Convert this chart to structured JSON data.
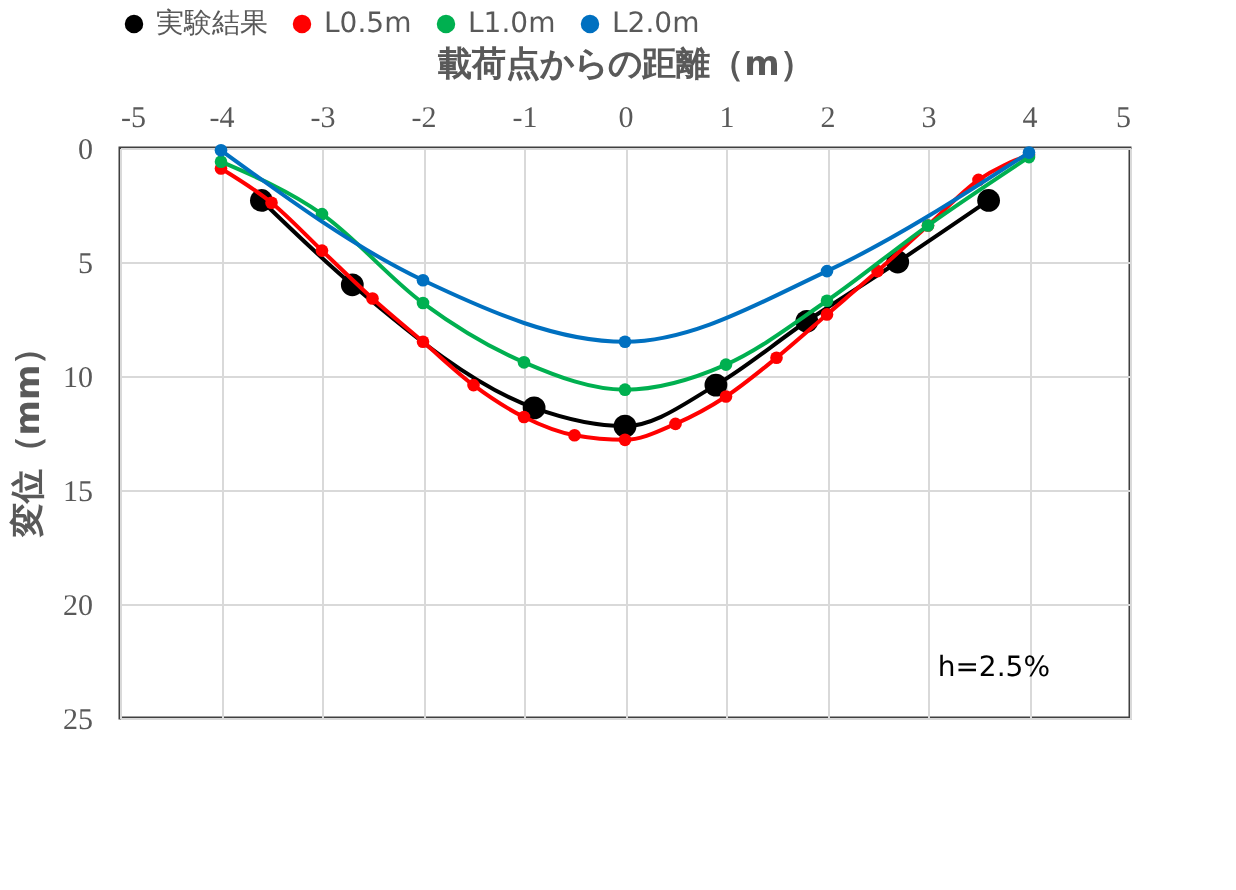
{
  "chart_data": {
    "type": "line",
    "xlabel": "載荷点からの距離（m）",
    "ylabel": "変位（mm）",
    "xlim": [
      -5,
      5
    ],
    "xticks": [
      -5,
      -4,
      -3,
      -2,
      -1,
      0,
      1,
      2,
      3,
      4,
      5
    ],
    "ylim": [
      25,
      0
    ],
    "yticks": [
      0,
      5,
      10,
      15,
      20,
      25
    ],
    "grid": true,
    "legend": "top",
    "marker": "circle",
    "line_style": "solid",
    "annotations": [
      "h=2.5%"
    ],
    "series": [
      {
        "name": "実験結果",
        "color": "#000000",
        "x": [
          -3.6,
          -2.7,
          -0.9,
          0,
          0.9,
          1.8,
          2.7,
          3.6
        ],
        "values": [
          2.3,
          6.0,
          11.4,
          12.2,
          10.4,
          7.6,
          5.0,
          2.3
        ]
      },
      {
        "name": "L0.5m",
        "color": "#ff0000",
        "x": [
          -4,
          -3.5,
          -3,
          -2.5,
          -2,
          -1.5,
          -1,
          -0.5,
          0,
          0.5,
          1,
          1.5,
          2,
          2.5,
          3,
          3.5,
          4
        ],
        "values": [
          0.9,
          2.4,
          4.5,
          6.6,
          8.5,
          10.4,
          11.8,
          12.6,
          12.8,
          12.1,
          10.9,
          9.2,
          7.3,
          5.4,
          3.4,
          1.4,
          0.3
        ]
      },
      {
        "name": "L1.0m",
        "color": "#00b050",
        "x": [
          -4,
          -3,
          -2,
          -1,
          0,
          1,
          2,
          3,
          4
        ],
        "values": [
          0.6,
          2.9,
          6.8,
          9.4,
          10.6,
          9.5,
          6.7,
          3.4,
          0.4
        ]
      },
      {
        "name": "L2.0m",
        "color": "#0070c0",
        "x": [
          -4,
          -2,
          0,
          2,
          4
        ],
        "values": [
          0.1,
          5.8,
          8.5,
          5.4,
          0.2
        ]
      }
    ]
  }
}
